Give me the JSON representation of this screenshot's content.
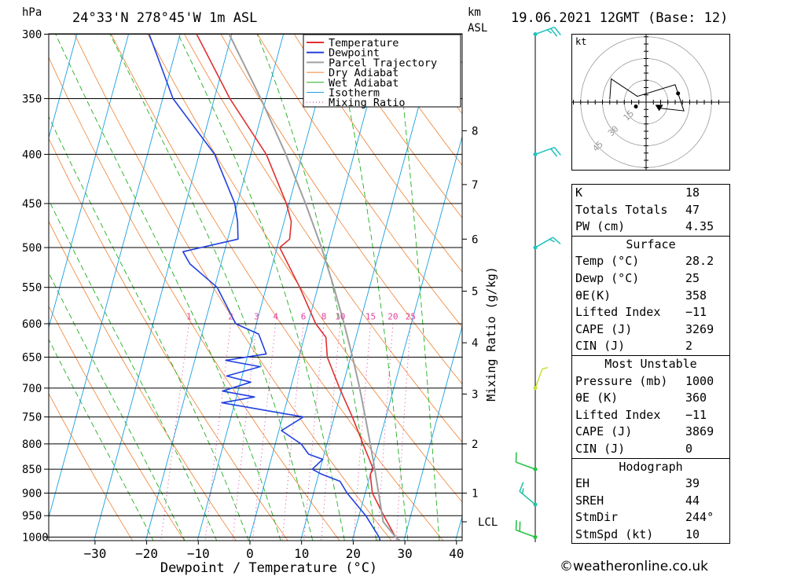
{
  "header": {
    "pressure_unit": "hPa",
    "location": "24°33'N  278°45'W  1m  ASL",
    "height_unit_top": "km",
    "height_unit_bottom": "ASL",
    "datetime": "19.06.2021  12GMT  (Base: 12)"
  },
  "chart_data": {
    "type": "line",
    "title": "24°33'N  278°45'W  1m  ASL",
    "xlabel": "Dewpoint / Temperature (°C)",
    "ylabel": "hPa",
    "y2label": "Mixing Ratio (g/kg)",
    "x_ticks": [
      -30,
      -20,
      -10,
      0,
      10,
      20,
      30,
      40
    ],
    "x_tick_labels": [
      "−30",
      "−20",
      "−10",
      "0",
      "10",
      "20",
      "30",
      "40"
    ],
    "pressure_levels": [
      300,
      350,
      400,
      450,
      500,
      550,
      600,
      650,
      700,
      750,
      800,
      850,
      900,
      950,
      1000
    ],
    "height_km_ticks": [
      {
        "km": 1,
        "p": 900
      },
      {
        "km": 2,
        "p": 800
      },
      {
        "km": 3,
        "p": 710
      },
      {
        "km": 4,
        "p": 628
      },
      {
        "km": 5,
        "p": 555
      },
      {
        "km": 6,
        "p": 490
      },
      {
        "km": 7,
        "p": 430
      },
      {
        "km": 8,
        "p": 378
      }
    ],
    "lcl_label": "LCL",
    "lcl_pressure": 964,
    "mixing_ratio_labels": [
      "1",
      "2",
      "3",
      "4",
      "6",
      "8",
      "10",
      "15",
      "20",
      "25"
    ],
    "mixing_ratio_values": [
      1,
      2,
      3,
      4,
      6,
      8,
      10,
      15,
      20,
      25
    ],
    "mixing_ratio_label_pressure": 594,
    "skew_deg_per_log": 22,
    "legend": [
      "Temperature",
      "Dewpoint",
      "Parcel Trajectory",
      "Dry Adiabat",
      "Wet Adiabat",
      "Isotherm",
      "Mixing Ratio"
    ],
    "series": [
      {
        "name": "Temperature",
        "color": "#e03030",
        "points": [
          [
            1011,
            29.5
          ],
          [
            1000,
            28.2
          ],
          [
            950,
            24.8
          ],
          [
            900,
            21.4
          ],
          [
            875,
            20.5
          ],
          [
            860,
            20.0
          ],
          [
            850,
            20.3
          ],
          [
            800,
            17.0
          ],
          [
            750,
            13.5
          ],
          [
            700,
            9.5
          ],
          [
            650,
            5.5
          ],
          [
            620,
            4.2
          ],
          [
            600,
            1.5
          ],
          [
            550,
            -3.5
          ],
          [
            500,
            -9.5
          ],
          [
            490,
            -8.0
          ],
          [
            470,
            -8.6
          ],
          [
            450,
            -10.5
          ],
          [
            400,
            -17.0
          ],
          [
            350,
            -27.0
          ],
          [
            300,
            -36.8
          ]
        ]
      },
      {
        "name": "Dewpoint",
        "color": "#2040e0",
        "points": [
          [
            1011,
            25.5
          ],
          [
            1000,
            25.0
          ],
          [
            950,
            21.3
          ],
          [
            900,
            16.5
          ],
          [
            875,
            14.5
          ],
          [
            860,
            10.5
          ],
          [
            850,
            8.5
          ],
          [
            830,
            10.0
          ],
          [
            820,
            7.0
          ],
          [
            800,
            5.0
          ],
          [
            775,
            0.5
          ],
          [
            750,
            4.0
          ],
          [
            725,
            -12.5
          ],
          [
            715,
            -6.5
          ],
          [
            705,
            -13.0
          ],
          [
            690,
            -8.0
          ],
          [
            680,
            -13.0
          ],
          [
            665,
            -7.0
          ],
          [
            655,
            -14.0
          ],
          [
            645,
            -6.5
          ],
          [
            615,
            -9.0
          ],
          [
            600,
            -14.0
          ],
          [
            550,
            -19.5
          ],
          [
            520,
            -26.0
          ],
          [
            505,
            -28.0
          ],
          [
            490,
            -18.0
          ],
          [
            470,
            -19.0
          ],
          [
            450,
            -20.5
          ],
          [
            400,
            -27.0
          ],
          [
            350,
            -38.0
          ],
          [
            300,
            -46.0
          ]
        ]
      },
      {
        "name": "Parcel Trajectory",
        "color": "#a0a0a0",
        "points": [
          [
            1011,
            29.5
          ],
          [
            1000,
            28.2
          ],
          [
            964,
            25.0
          ],
          [
            900,
            22.6
          ],
          [
            850,
            20.6
          ],
          [
            800,
            18.4
          ],
          [
            750,
            16.0
          ],
          [
            700,
            13.4
          ],
          [
            650,
            10.4
          ],
          [
            600,
            7.0
          ],
          [
            550,
            3.1
          ],
          [
            500,
            -1.4
          ],
          [
            450,
            -6.8
          ],
          [
            400,
            -13.2
          ],
          [
            350,
            -21.0
          ],
          [
            300,
            -30.5
          ]
        ]
      }
    ],
    "wind_profile": [
      {
        "p": 300,
        "dir": 250,
        "kt": 25,
        "color": "#20c0c0"
      },
      {
        "p": 400,
        "dir": 250,
        "kt": 20,
        "color": "#20c0c0"
      },
      {
        "p": 500,
        "dir": 240,
        "kt": 15,
        "color": "#20c0c0"
      },
      {
        "p": 700,
        "dir": 200,
        "kt": 5,
        "color": "#c8e030"
      },
      {
        "p": 850,
        "dir": 110,
        "kt": 10,
        "color": "#20c040"
      },
      {
        "p": 925,
        "dir": 130,
        "kt": 15,
        "color": "#20c0a0"
      },
      {
        "p": 1000,
        "dir": 110,
        "kt": 20,
        "color": "#20c040"
      }
    ],
    "colors": {
      "isotherm": "#1aa0e0",
      "dry_adiabat": "#f08030",
      "wet_adiabat": "#20b020",
      "mixing_ratio": "#e040a0",
      "parcel": "#a0a0a0"
    }
  },
  "hodograph": {
    "unit_label": "kt",
    "ring_labels": [
      "15",
      "30",
      "45"
    ],
    "trace_kt": [
      [
        -25,
        2
      ],
      [
        -24,
        16
      ],
      [
        -6,
        4
      ],
      [
        20,
        12
      ],
      [
        26,
        -6
      ],
      [
        8,
        -4
      ]
    ],
    "storm_motion_kt": [
      9,
      -4
    ],
    "surface_kt": [
      -7,
      -3
    ]
  },
  "indices": {
    "top": [
      {
        "key": "K",
        "value": "18"
      },
      {
        "key": "Totals Totals",
        "value": "47"
      },
      {
        "key": "PW (cm)",
        "value": "4.35"
      }
    ],
    "surface_title": "Surface",
    "surface": [
      {
        "key": "Temp (°C)",
        "value": "28.2"
      },
      {
        "key": "Dewp (°C)",
        "value": "25"
      },
      {
        "key": "θE(K)",
        "value": "358"
      },
      {
        "key": "Lifted Index",
        "value": "−11"
      },
      {
        "key": "CAPE (J)",
        "value": "3269"
      },
      {
        "key": "CIN (J)",
        "value": "2"
      }
    ],
    "unstable_title": "Most Unstable",
    "unstable": [
      {
        "key": "Pressure (mb)",
        "value": "1000"
      },
      {
        "key": "θE (K)",
        "value": "360"
      },
      {
        "key": "Lifted Index",
        "value": "−11"
      },
      {
        "key": "CAPE (J)",
        "value": "3869"
      },
      {
        "key": "CIN (J)",
        "value": "0"
      }
    ],
    "hodo_title": "Hodograph",
    "hodo": [
      {
        "key": "EH",
        "value": "39"
      },
      {
        "key": "SREH",
        "value": "44"
      },
      {
        "key": "StmDir",
        "value": "244°"
      },
      {
        "key": "StmSpd (kt)",
        "value": "10"
      }
    ]
  },
  "footer": {
    "credit": "©weatheronline.co.uk"
  }
}
